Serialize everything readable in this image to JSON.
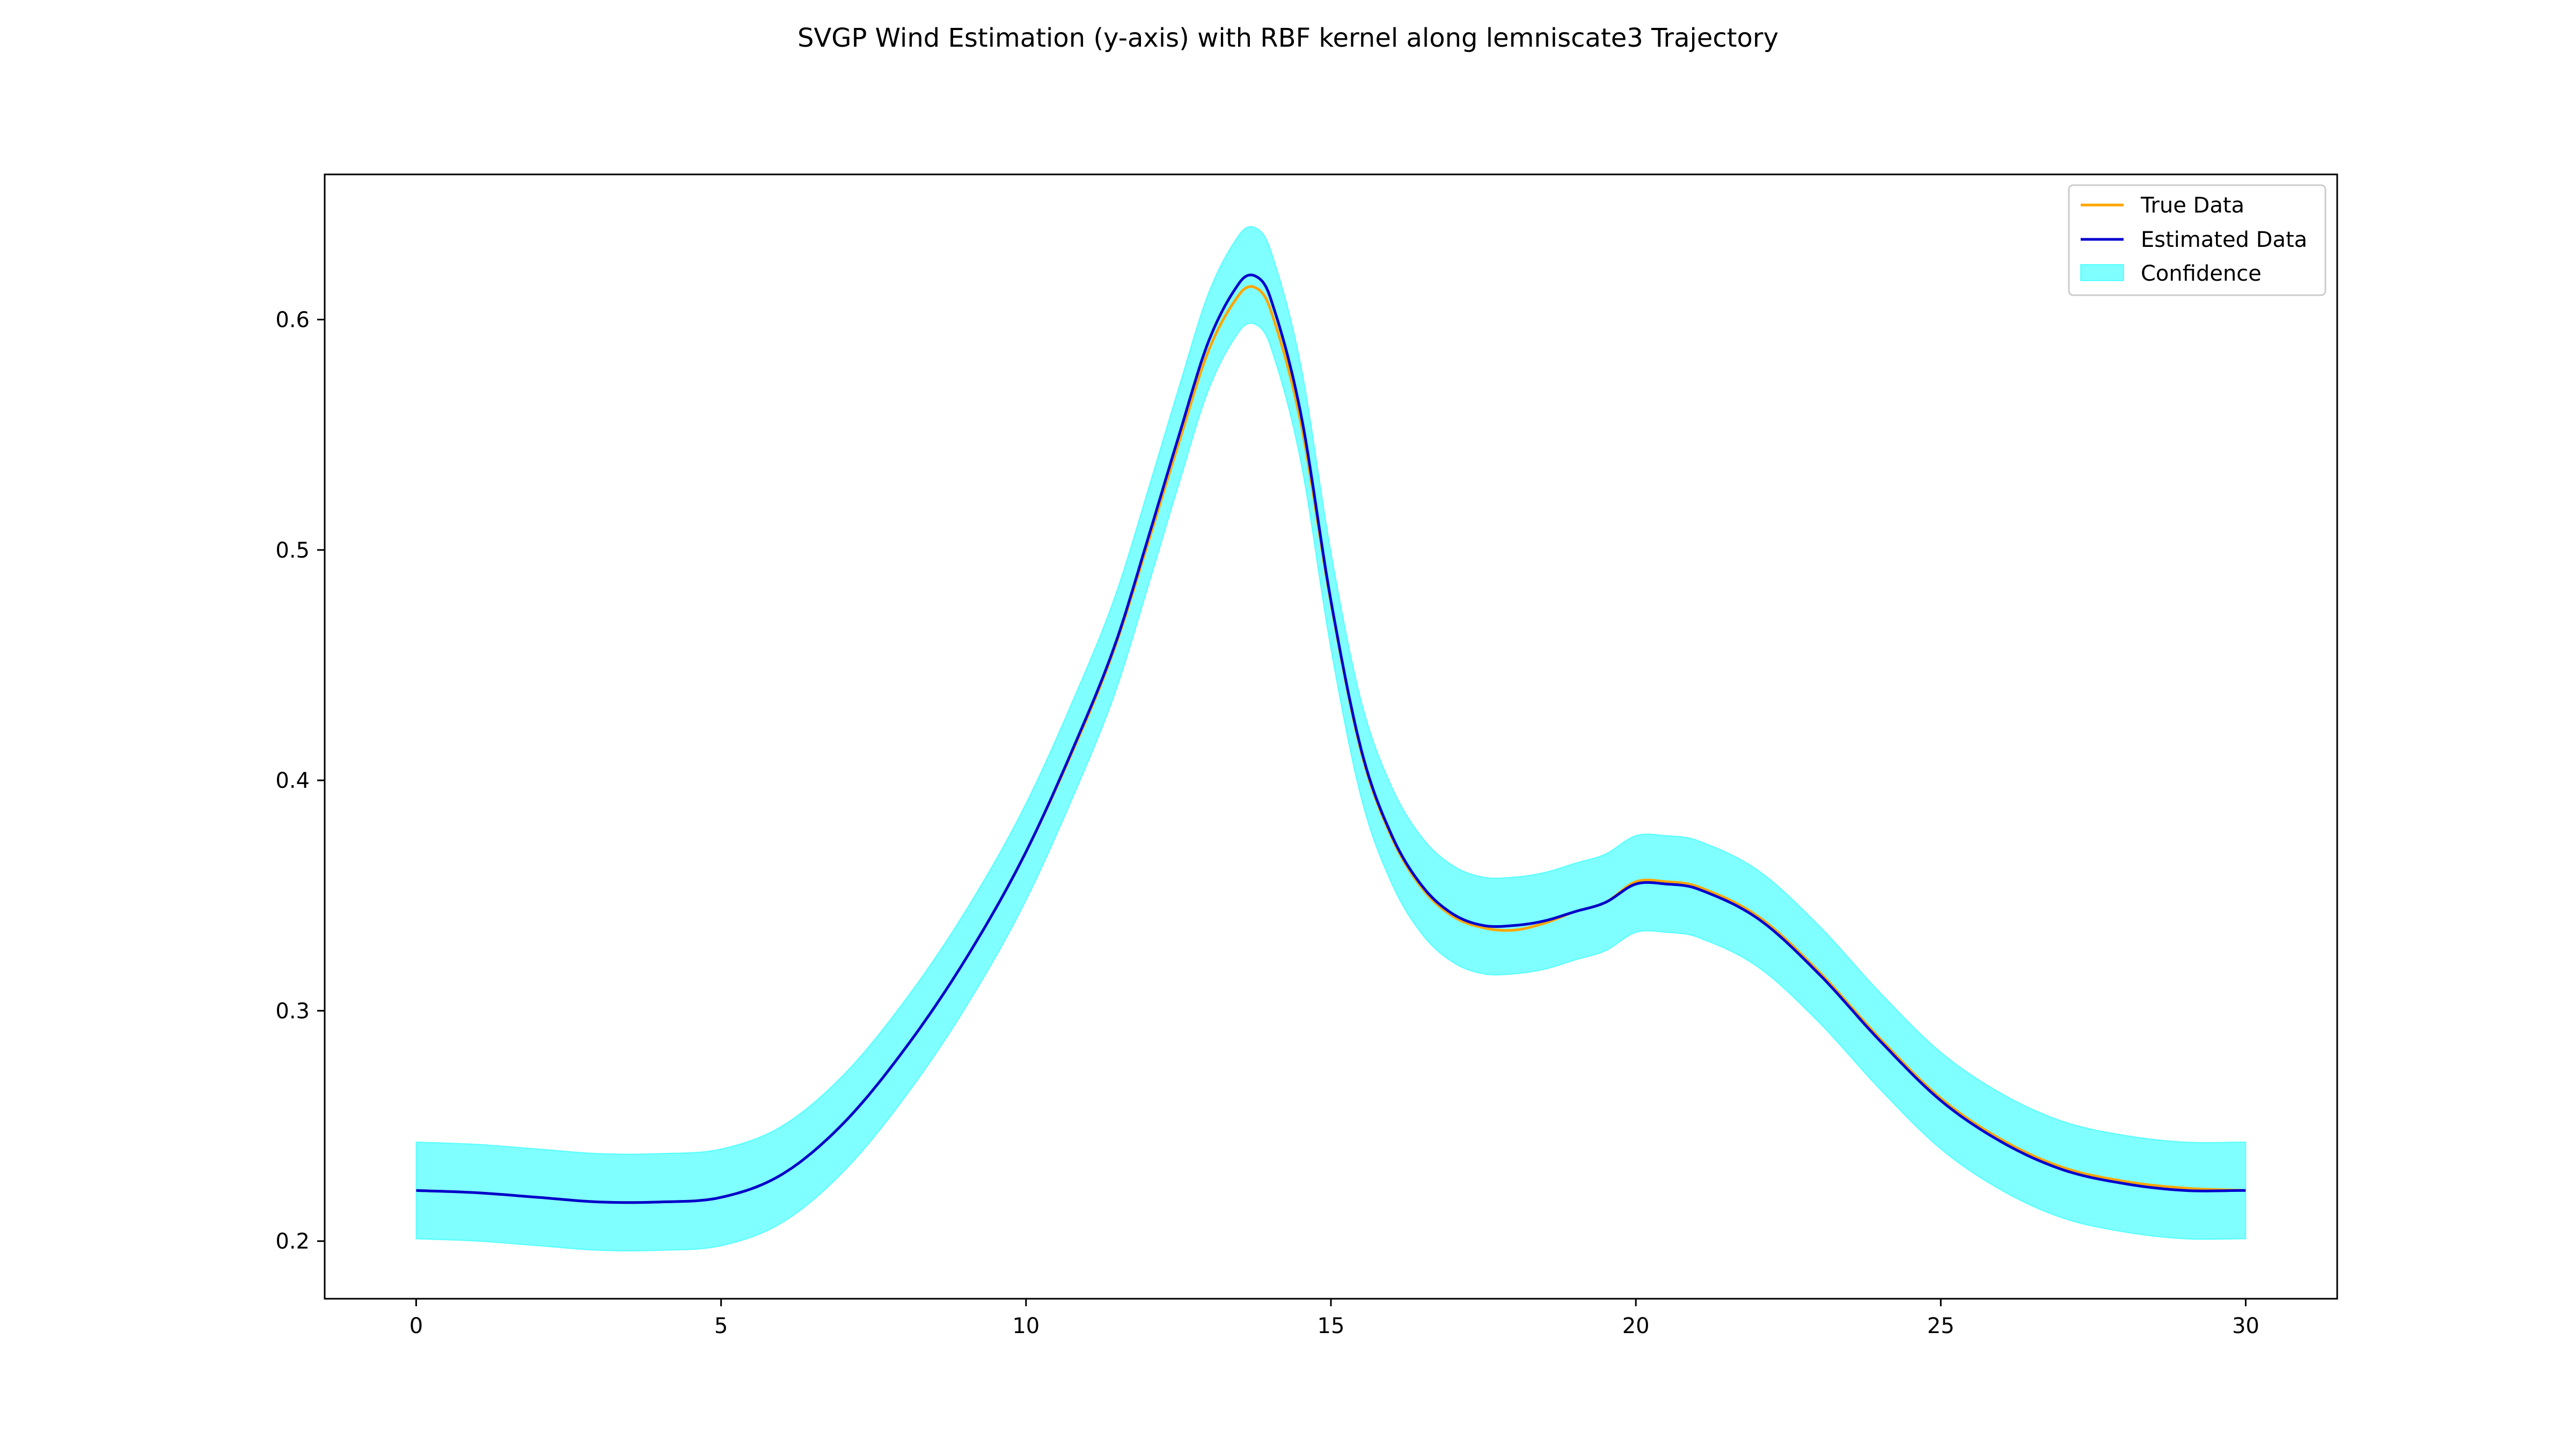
{
  "chart_data": {
    "type": "line",
    "title": "SVGP Wind Estimation (y-axis) with RBF kernel along lemniscate3 Trajectory",
    "xlabel": "",
    "ylabel": "",
    "xlim": [
      -1.5,
      31.5
    ],
    "ylim": [
      0.175,
      0.663
    ],
    "x_ticks": [
      0,
      5,
      10,
      15,
      20,
      25,
      30
    ],
    "x_tick_labels": [
      "0",
      "5",
      "10",
      "15",
      "20",
      "25",
      "30"
    ],
    "y_ticks": [
      0.2,
      0.3,
      0.4,
      0.5,
      0.6
    ],
    "y_tick_labels": [
      "0.2",
      "0.3",
      "0.4",
      "0.5",
      "0.6"
    ],
    "grid": false,
    "legend_position": "top-right",
    "confidence_halfwidth": 0.021,
    "x": [
      0,
      1,
      2,
      3,
      4,
      5,
      6,
      7,
      8,
      9,
      10,
      11,
      11.5,
      12,
      12.5,
      13,
      13.5,
      13.75,
      14,
      14.5,
      15,
      15.5,
      16,
      16.5,
      17,
      17.5,
      18,
      18.5,
      19,
      19.5,
      20,
      20.5,
      21,
      22,
      23,
      24,
      25,
      26,
      27,
      28,
      29,
      30
    ],
    "series": [
      {
        "name": "True Data",
        "color": "#ffa500",
        "role": "line",
        "values": [
          0.222,
          0.221,
          0.219,
          0.217,
          0.217,
          0.219,
          0.229,
          0.251,
          0.283,
          0.322,
          0.369,
          0.427,
          0.461,
          0.503,
          0.546,
          0.587,
          0.611,
          0.614,
          0.605,
          0.556,
          0.477,
          0.412,
          0.375,
          0.353,
          0.341,
          0.336,
          0.335,
          0.338,
          0.343,
          0.347,
          0.356,
          0.356,
          0.354,
          0.341,
          0.317,
          0.288,
          0.262,
          0.244,
          0.232,
          0.226,
          0.223,
          0.222
        ]
      },
      {
        "name": "Estimated Data",
        "color": "#0000cd",
        "role": "line",
        "values": [
          0.222,
          0.221,
          0.219,
          0.217,
          0.217,
          0.219,
          0.229,
          0.251,
          0.283,
          0.322,
          0.369,
          0.428,
          0.462,
          0.505,
          0.549,
          0.591,
          0.616,
          0.619,
          0.61,
          0.56,
          0.478,
          0.413,
          0.376,
          0.354,
          0.342,
          0.337,
          0.337,
          0.339,
          0.343,
          0.347,
          0.355,
          0.355,
          0.353,
          0.34,
          0.316,
          0.287,
          0.261,
          0.243,
          0.231,
          0.225,
          0.222,
          0.222
        ]
      },
      {
        "name": "Confidence",
        "color": "#00ffff",
        "role": "band"
      }
    ]
  }
}
